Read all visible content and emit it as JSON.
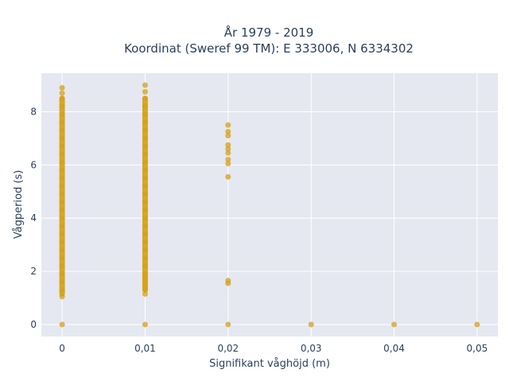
{
  "chart_data": {
    "type": "scatter",
    "title_line1": "År 1979 - 2019",
    "title_line2": "Koordinat (Sweref 99 TM): E 333006, N 6334302",
    "xlabel": "Signifikant våghöjd (m)",
    "ylabel": "Vågperiod (s)",
    "xlim": [
      -0.0025,
      0.0525
    ],
    "ylim": [
      -0.45,
      9.45
    ],
    "x_ticks": [
      {
        "value": 0,
        "label": "0"
      },
      {
        "value": 0.01,
        "label": "0,01"
      },
      {
        "value": 0.02,
        "label": "0,02"
      },
      {
        "value": 0.03,
        "label": "0,03"
      },
      {
        "value": 0.04,
        "label": "0,04"
      },
      {
        "value": 0.05,
        "label": "0,05"
      }
    ],
    "y_ticks": [
      {
        "value": 0,
        "label": "0"
      },
      {
        "value": 2,
        "label": "2"
      },
      {
        "value": 4,
        "label": "4"
      },
      {
        "value": 6,
        "label": "6"
      },
      {
        "value": 8,
        "label": "8"
      }
    ],
    "grid": true,
    "marker_color": "#d4a017",
    "plot_bg": "#e5e8f0",
    "series": [
      {
        "points": [
          {
            "x": 0,
            "y": 0
          },
          {
            "x": 0,
            "y": 1.05
          },
          {
            "x": 0,
            "y": 1.3
          },
          {
            "x": 0,
            "y": 1.6
          },
          {
            "x": 0,
            "y": 1.9
          },
          {
            "x": 0,
            "y": 2.2
          },
          {
            "x": 0,
            "y": 2.5
          },
          {
            "x": 0,
            "y": 2.8
          },
          {
            "x": 0,
            "y": 3.1
          },
          {
            "x": 0,
            "y": 3.4
          },
          {
            "x": 0,
            "y": 3.7
          },
          {
            "x": 0,
            "y": 4.0
          },
          {
            "x": 0,
            "y": 4.3
          },
          {
            "x": 0,
            "y": 4.6
          },
          {
            "x": 0,
            "y": 4.9
          },
          {
            "x": 0,
            "y": 5.2
          },
          {
            "x": 0,
            "y": 5.5
          },
          {
            "x": 0,
            "y": 5.8
          },
          {
            "x": 0,
            "y": 6.1
          },
          {
            "x": 0,
            "y": 6.4
          },
          {
            "x": 0,
            "y": 6.7
          },
          {
            "x": 0,
            "y": 7.0
          },
          {
            "x": 0,
            "y": 7.3
          },
          {
            "x": 0,
            "y": 7.6
          },
          {
            "x": 0,
            "y": 7.9
          },
          {
            "x": 0,
            "y": 8.2
          },
          {
            "x": 0,
            "y": 8.5
          },
          {
            "x": 0,
            "y": 8.7
          },
          {
            "x": 0,
            "y": 8.9
          },
          {
            "x": 0.01,
            "y": 0
          },
          {
            "x": 0.01,
            "y": 1.15
          },
          {
            "x": 0.01,
            "y": 1.3
          },
          {
            "x": 0.01,
            "y": 1.5
          },
          {
            "x": 0.01,
            "y": 1.7
          },
          {
            "x": 0.01,
            "y": 1.9
          },
          {
            "x": 0.01,
            "y": 2.2
          },
          {
            "x": 0.01,
            "y": 2.5
          },
          {
            "x": 0.01,
            "y": 2.8
          },
          {
            "x": 0.01,
            "y": 3.1
          },
          {
            "x": 0.01,
            "y": 3.4
          },
          {
            "x": 0.01,
            "y": 3.7
          },
          {
            "x": 0.01,
            "y": 4.0
          },
          {
            "x": 0.01,
            "y": 4.3
          },
          {
            "x": 0.01,
            "y": 4.6
          },
          {
            "x": 0.01,
            "y": 4.9
          },
          {
            "x": 0.01,
            "y": 5.2
          },
          {
            "x": 0.01,
            "y": 5.5
          },
          {
            "x": 0.01,
            "y": 5.8
          },
          {
            "x": 0.01,
            "y": 6.1
          },
          {
            "x": 0.01,
            "y": 6.4
          },
          {
            "x": 0.01,
            "y": 6.7
          },
          {
            "x": 0.01,
            "y": 7.0
          },
          {
            "x": 0.01,
            "y": 7.3
          },
          {
            "x": 0.01,
            "y": 7.6
          },
          {
            "x": 0.01,
            "y": 7.9
          },
          {
            "x": 0.01,
            "y": 8.2
          },
          {
            "x": 0.01,
            "y": 8.5
          },
          {
            "x": 0.01,
            "y": 8.75
          },
          {
            "x": 0.01,
            "y": 9.0
          },
          {
            "x": 0.02,
            "y": 0
          },
          {
            "x": 0.02,
            "y": 1.55
          },
          {
            "x": 0.02,
            "y": 1.65
          },
          {
            "x": 0.02,
            "y": 5.55
          },
          {
            "x": 0.02,
            "y": 6.05
          },
          {
            "x": 0.02,
            "y": 6.2
          },
          {
            "x": 0.02,
            "y": 6.45
          },
          {
            "x": 0.02,
            "y": 6.6
          },
          {
            "x": 0.02,
            "y": 6.75
          },
          {
            "x": 0.02,
            "y": 7.1
          },
          {
            "x": 0.02,
            "y": 7.25
          },
          {
            "x": 0.02,
            "y": 7.5
          },
          {
            "x": 0.03,
            "y": 0
          },
          {
            "x": 0.04,
            "y": 0
          },
          {
            "x": 0.05,
            "y": 0
          }
        ]
      }
    ]
  }
}
